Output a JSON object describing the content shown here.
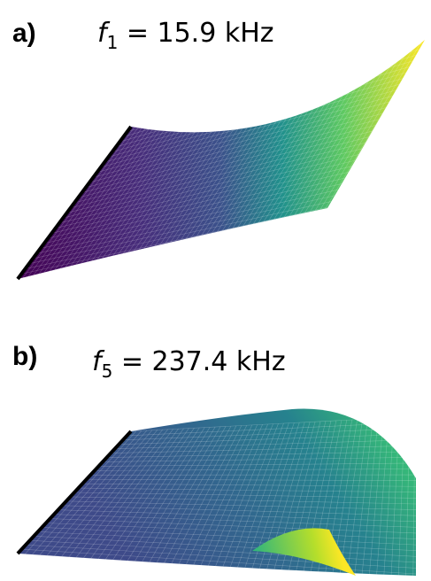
{
  "panels": [
    {
      "label": "a)",
      "title": {
        "var": "f",
        "sub": "1",
        "rest": " = 15.9 kHz"
      }
    },
    {
      "label": "b)",
      "title": {
        "var": "f",
        "sub": "5",
        "rest": " = 237.4 kHz"
      }
    }
  ]
}
